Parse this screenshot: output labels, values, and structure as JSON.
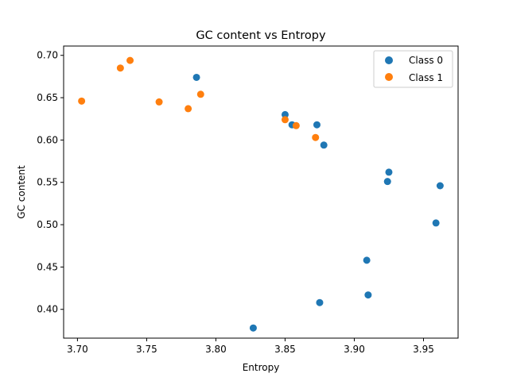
{
  "chart_data": {
    "type": "scatter",
    "title": "GC content vs Entropy",
    "xlabel": "Entropy",
    "ylabel": "GC content",
    "xlim": [
      3.69,
      3.975
    ],
    "ylim": [
      0.366,
      0.711
    ],
    "xticks": [
      "3.70",
      "3.75",
      "3.80",
      "3.85",
      "3.90",
      "3.95"
    ],
    "yticks": [
      "0.40",
      "0.45",
      "0.50",
      "0.55",
      "0.60",
      "0.65",
      "0.70"
    ],
    "grid": false,
    "legend_position": "top-right",
    "series": [
      {
        "name": "Class 0",
        "color": "#1f77b4",
        "points": [
          [
            3.786,
            0.674
          ],
          [
            3.85,
            0.63
          ],
          [
            3.855,
            0.618
          ],
          [
            3.873,
            0.618
          ],
          [
            3.878,
            0.594
          ],
          [
            3.925,
            0.562
          ],
          [
            3.924,
            0.551
          ],
          [
            3.962,
            0.546
          ],
          [
            3.959,
            0.502
          ],
          [
            3.909,
            0.458
          ],
          [
            3.91,
            0.417
          ],
          [
            3.875,
            0.408
          ],
          [
            3.827,
            0.378
          ]
        ]
      },
      {
        "name": "Class 1",
        "color": "#ff7f0e",
        "points": [
          [
            3.703,
            0.646
          ],
          [
            3.731,
            0.685
          ],
          [
            3.738,
            0.694
          ],
          [
            3.759,
            0.645
          ],
          [
            3.78,
            0.637
          ],
          [
            3.789,
            0.654
          ],
          [
            3.85,
            0.624
          ],
          [
            3.858,
            0.617
          ],
          [
            3.872,
            0.603
          ]
        ]
      }
    ]
  }
}
